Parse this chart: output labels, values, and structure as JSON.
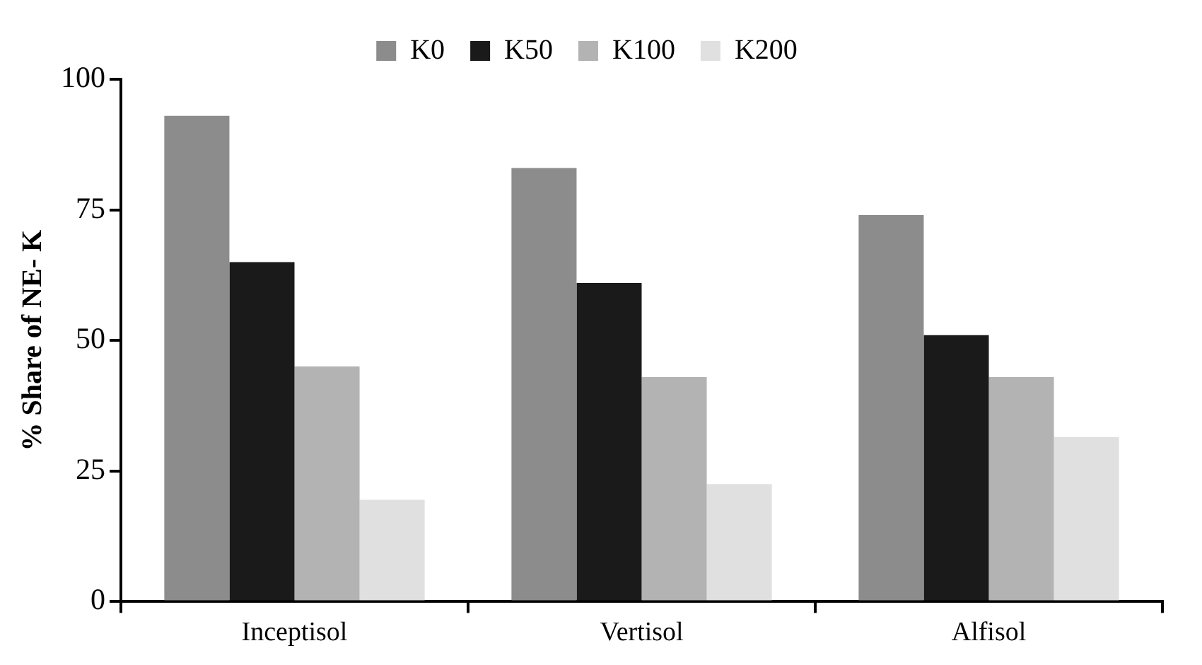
{
  "chart_data": {
    "type": "bar",
    "ylabel": "% Share of NE- K",
    "categories": [
      "Inceptisol",
      "Vertisol",
      "Alfisol"
    ],
    "series": [
      {
        "name": "K0",
        "color": "#8c8c8c",
        "values": [
          93,
          83,
          74
        ]
      },
      {
        "name": "K50",
        "color": "#1a1a1a",
        "values": [
          65,
          61,
          51
        ]
      },
      {
        "name": "K100",
        "color": "#b3b3b3",
        "values": [
          45,
          43,
          43
        ]
      },
      {
        "name": "K200",
        "color": "#e0e0e0",
        "values": [
          19.5,
          22.5,
          31.5
        ]
      }
    ],
    "ylim": [
      0,
      100
    ],
    "yticks": [
      0,
      25,
      50,
      75,
      100
    ],
    "grid": false,
    "legend": "top"
  }
}
